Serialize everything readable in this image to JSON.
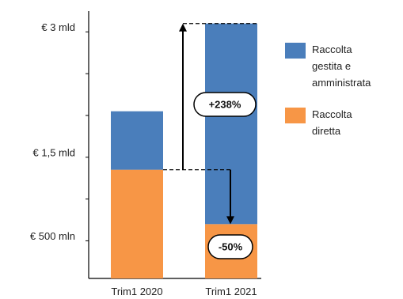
{
  "chart_data": {
    "type": "bar",
    "stacked": true,
    "categories": [
      "Trim1 2020",
      "Trim1 2021"
    ],
    "series": [
      {
        "name": "Raccolta diretta",
        "values": [
          1.3,
          0.65
        ],
        "color": "#F79646"
      },
      {
        "name": "Raccolta gestita e amministrata",
        "values": [
          0.7,
          2.4
        ],
        "color": "#4A7EBB"
      }
    ],
    "ytick_labels": [
      {
        "value": 0.5,
        "label": "€ 500 mln"
      },
      {
        "value": 1.5,
        "label": "€ 1,5 mld"
      },
      {
        "value": 3.0,
        "label": "€ 3 mld"
      }
    ],
    "ylim": [
      0,
      3.2
    ],
    "legend": {
      "position": "right",
      "items": [
        {
          "lines": [
            "Raccolta",
            "gestita e",
            "amministrata"
          ],
          "color": "#4A7EBB"
        },
        {
          "lines": [
            "Raccolta",
            "diretta"
          ],
          "color": "#F79646"
        }
      ]
    },
    "annotations": {
      "increase_label": "+238%",
      "decrease_label": "-50%"
    }
  }
}
